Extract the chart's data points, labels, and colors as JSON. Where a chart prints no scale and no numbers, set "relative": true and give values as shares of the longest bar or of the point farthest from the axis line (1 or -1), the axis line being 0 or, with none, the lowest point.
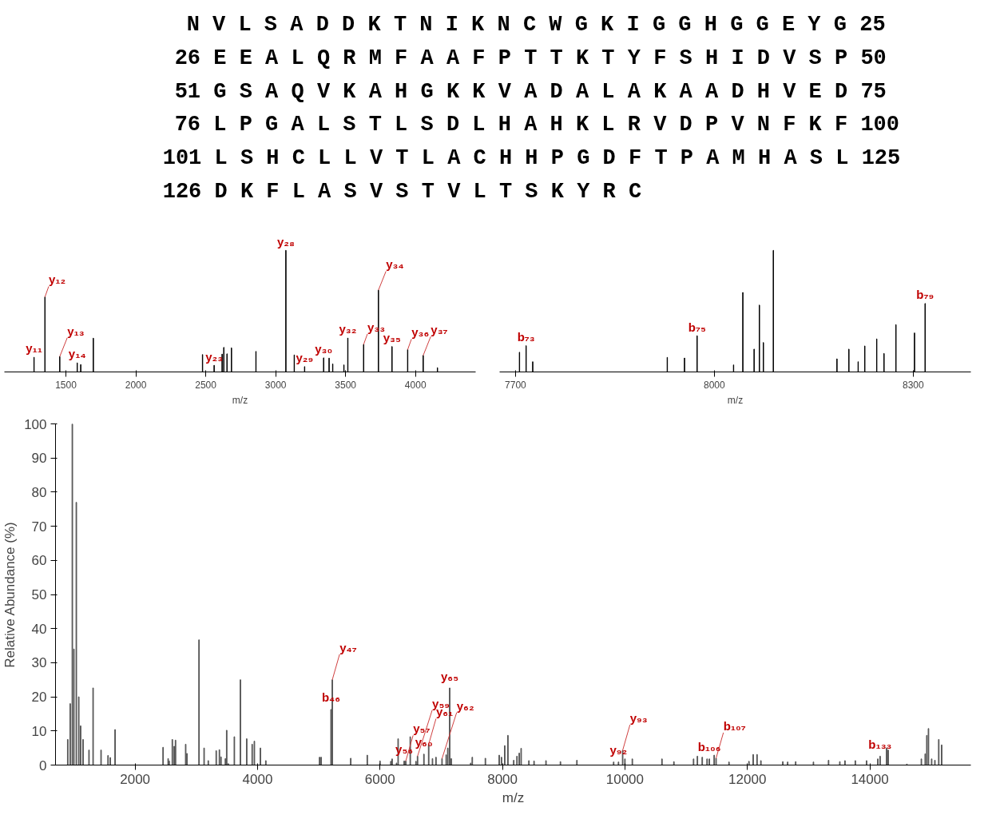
{
  "chart_data": [
    {
      "type": "other",
      "annotations": [
        "N V L S A D D K T N I K N C W G K I G G H G G E Y G 25",
        "26 E E A L Q R M F A A F P T T K T Y F S H I D V S P 50",
        "51 G S A Q V K A H G K K V A D A L A K A A D H V E D 75",
        "76 L P G A L S T L S D L H A H K L R V D P V N F K F 100",
        "101 L S H C L L V T L A C H H P G D F T P A M H A S L 125",
        "126 D K F L A S V S T V L T S K Y R C"
      ]
    },
    {
      "type": "bar",
      "relative": true,
      "color": "#000000",
      "xlabel": "m/z",
      "xlim": [
        1060,
        4430
      ],
      "xticks": [
        1500,
        2000,
        2500,
        3000,
        3500,
        4000
      ],
      "x": [
        1272,
        1350,
        1456,
        1581,
        1606,
        1696,
        2477,
        2560,
        2617,
        2629,
        2652,
        2684,
        2859,
        3073,
        3133,
        3207,
        3343,
        3382,
        3408,
        3488,
        3516,
        3629,
        3735,
        3832,
        3944,
        4055,
        4157
      ],
      "values": [
        0.121,
        0.617,
        0.127,
        0.075,
        0.061,
        0.278,
        0.143,
        0.055,
        0.147,
        0.202,
        0.149,
        0.198,
        0.169,
        1,
        0.14,
        0.044,
        0.116,
        0.114,
        0.066,
        0.058,
        0.279,
        0.226,
        0.673,
        0.209,
        0.184,
        0.136,
        0.035
      ],
      "annotations": [
        {
          "text": "y₁₁",
          "x": 1272,
          "y": 0.121
        },
        {
          "text": "y₁₂",
          "x": 1350,
          "y": 0.617
        },
        {
          "text": "y₁₃",
          "x": 1456,
          "y": 0.127
        },
        {
          "text": "y₁₄",
          "x": 1581,
          "y": 0.075
        },
        {
          "text": "y₂₃",
          "x": 2560,
          "y": 0.055
        },
        {
          "text": "y₂₈",
          "x": 3073,
          "y": 1
        },
        {
          "text": "y₂₉",
          "x": 3207,
          "y": 0.044
        },
        {
          "text": "y₃₀",
          "x": 3343,
          "y": 0.116
        },
        {
          "text": "y₃₂",
          "x": 3516,
          "y": 0.279
        },
        {
          "text": "y₃₃",
          "x": 3629,
          "y": 0.226
        },
        {
          "text": "y₃₄",
          "x": 3735,
          "y": 0.673
        },
        {
          "text": "y₃₅",
          "x": 3832,
          "y": 0.209
        },
        {
          "text": "y₃₆",
          "x": 3944,
          "y": 0.184
        },
        {
          "text": "y₃₇",
          "x": 4055,
          "y": 0.136
        }
      ]
    },
    {
      "type": "bar",
      "relative": true,
      "color": "#000000",
      "xlabel": "m/z",
      "xlim": [
        7676,
        8387
      ],
      "xticks": [
        7700,
        8000,
        8300
      ],
      "x": [
        7706,
        7716,
        7726,
        7929,
        7955,
        7974,
        8029,
        8043,
        8060,
        8068,
        8074,
        8089,
        8185,
        8203,
        8217,
        8227,
        8245,
        8256,
        8274,
        8302,
        8318
      ],
      "values": [
        0.162,
        0.216,
        0.084,
        0.12,
        0.115,
        0.298,
        0.058,
        0.654,
        0.188,
        0.55,
        0.242,
        1,
        0.108,
        0.188,
        0.084,
        0.214,
        0.272,
        0.152,
        0.389,
        0.321,
        0.563
      ],
      "annotations": [
        {
          "text": "b₇₃",
          "x": 7716,
          "y": 0.216
        },
        {
          "text": "b₇₅",
          "x": 7974,
          "y": 0.298
        },
        {
          "text": "b₇₉",
          "x": 8318,
          "y": 0.563
        }
      ]
    },
    {
      "type": "bar",
      "color": "#555555",
      "xlabel": "m/z",
      "ylabel": "Relative Abundance (%)",
      "xlim": [
        700,
        15650
      ],
      "ylim": [
        0,
        100
      ],
      "xticks": [
        2000,
        4000,
        6000,
        8000,
        10000,
        12000,
        14000
      ],
      "yticks": [
        0,
        10,
        20,
        30,
        40,
        50,
        60,
        70,
        80,
        90,
        100
      ],
      "x": [
        900,
        940,
        975,
        1000,
        1040,
        1080,
        1110,
        1150,
        1247,
        1314,
        1444,
        1558,
        1595,
        1673,
        2457,
        2540,
        2556,
        2608,
        2639,
        2660,
        2826,
        2847,
        3044,
        3127,
        3195,
        3325,
        3377,
        3403,
        3475,
        3496,
        3522,
        3621,
        3720,
        3823,
        3912,
        3948,
        4047,
        4135,
        5013,
        5039,
        5200,
        5221,
        5522,
        5792,
        6000,
        6177,
        6198,
        6270,
        6296,
        6395,
        6421,
        6494,
        6587,
        6613,
        6717,
        6795,
        6857,
        6914,
        7013,
        7081,
        7107,
        7138,
        7164,
        7481,
        7507,
        7721,
        7947,
        7984,
        8037,
        8089,
        8184,
        8237,
        8274,
        8305,
        8432,
        8516,
        8711,
        8947,
        9216,
        9816,
        9895,
        9963,
        10000,
        10121,
        10605,
        10800,
        11121,
        11184,
        11263,
        11342,
        11379,
        11458,
        11489,
        11700,
        12026,
        12095,
        12158,
        12221,
        12579,
        12658,
        12789,
        13079,
        13326,
        13510,
        13594,
        13763,
        13947,
        14131,
        14168,
        14274,
        14300,
        14605,
        14842,
        14905,
        14931,
        14958,
        15010,
        15063,
        15126,
        15173
      ],
      "values": [
        7.5,
        18,
        100,
        34,
        77,
        20,
        11.5,
        7.5,
        4.4,
        22.6,
        4.4,
        2.8,
        2.2,
        10.4,
        5.2,
        1.9,
        1.2,
        7.5,
        5.5,
        7.3,
        6.1,
        3.4,
        36.7,
        5,
        1.3,
        4.2,
        4.5,
        2.4,
        1.9,
        10.2,
        0.4,
        8.3,
        25,
        7.7,
        6.1,
        7,
        5,
        1.3,
        2.3,
        2.3,
        16.3,
        25,
        2,
        2.9,
        1.2,
        1.1,
        1.8,
        0.6,
        7.7,
        1.2,
        1.2,
        8.3,
        1.1,
        2.6,
        3.2,
        6.1,
        1.9,
        2.3,
        1.9,
        3,
        5,
        22.6,
        1.9,
        0.6,
        2.3,
        2,
        2.9,
        2.3,
        5.7,
        8.7,
        1.4,
        2.6,
        3.5,
        4.9,
        1.3,
        1.2,
        1.3,
        1,
        1.4,
        0.9,
        0.9,
        4.3,
        1.8,
        1.8,
        1.8,
        1,
        1.8,
        2.6,
        2.3,
        1.8,
        1.8,
        2.9,
        2,
        0.9,
        1.1,
        3.1,
        3.1,
        1.3,
        1,
        0.9,
        1,
        0.9,
        1.4,
        1,
        1.3,
        1.3,
        1.3,
        1.8,
        2.6,
        5,
        4.4,
        0.3,
        1.8,
        3.3,
        8.7,
        10.7,
        1.8,
        1.4,
        7.5,
        5.9
      ],
      "annotations": [
        {
          "text": "b₄₆",
          "x": 5200,
          "y": 16.3
        },
        {
          "text": "y₄₇",
          "x": 5221,
          "y": 25
        },
        {
          "text": "y₅₆",
          "x": 6395,
          "y": 1.2
        },
        {
          "text": "y₅₇",
          "x": 6421,
          "y": 1.2
        },
        {
          "text": "y₅₉",
          "x": 6613,
          "y": 2.6
        },
        {
          "text": "y₆₀",
          "x": 6717,
          "y": 3.2
        },
        {
          "text": "y₆₁",
          "x": 6795,
          "y": 6.1
        },
        {
          "text": "y₆₂",
          "x": 7013,
          "y": 1.9
        },
        {
          "text": "y₆₅",
          "x": 7138,
          "y": 22.6
        },
        {
          "text": "y₉₂",
          "x": 9895,
          "y": 0.9
        },
        {
          "text": "y₉₃",
          "x": 9963,
          "y": 4.3
        },
        {
          "text": "b₁₀₆",
          "x": 11379,
          "y": 1.8
        },
        {
          "text": "b₁₀₇",
          "x": 11489,
          "y": 2
        },
        {
          "text": "b₁₃₃",
          "x": 14168,
          "y": 2.6
        }
      ]
    }
  ]
}
